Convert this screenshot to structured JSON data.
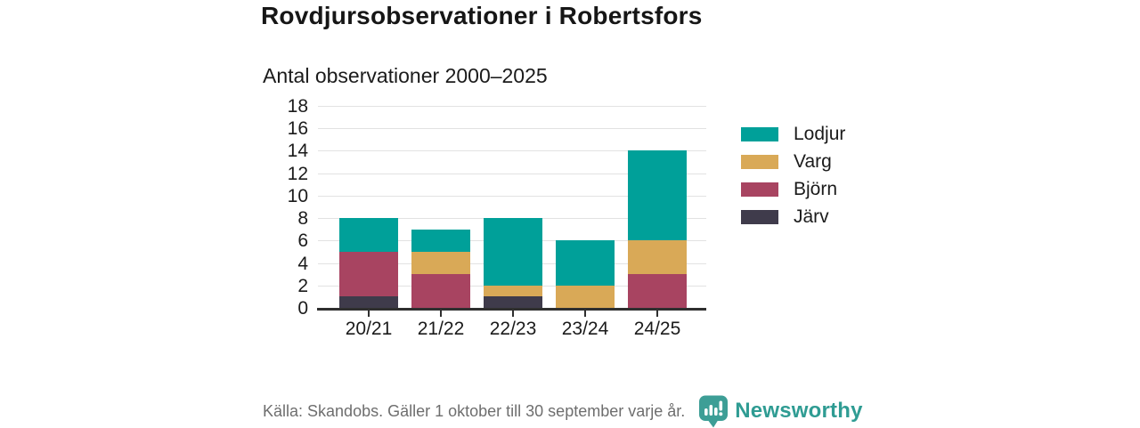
{
  "header": {
    "title": "Rovdjursobservationer i Robertsfors",
    "subtitle": "Antal observationer 2000–2025"
  },
  "chart_data": {
    "type": "bar",
    "stacked": true,
    "title": "Rovdjursobservationer i Robertsfors",
    "subtitle": "Antal observationer 2000–2025",
    "categories": [
      "20/21",
      "21/22",
      "22/23",
      "23/24",
      "24/25"
    ],
    "series": [
      {
        "name": "Järv",
        "color": "#3f3b4b",
        "values": [
          1,
          0,
          1,
          0,
          0
        ]
      },
      {
        "name": "Björn",
        "color": "#a84461",
        "values": [
          4,
          3,
          0,
          0,
          3
        ]
      },
      {
        "name": "Varg",
        "color": "#d9a957",
        "values": [
          0,
          2,
          1,
          2,
          3
        ]
      },
      {
        "name": "Lodjur",
        "color": "#00a099",
        "values": [
          3,
          2,
          6,
          4,
          8
        ]
      }
    ],
    "totals": [
      8,
      7,
      8,
      6,
      14
    ],
    "ylim": [
      0,
      18
    ],
    "yticks": [
      0,
      2,
      4,
      6,
      8,
      10,
      12,
      14,
      16,
      18
    ],
    "xlabel": "",
    "ylabel": "",
    "grid": "horizontal",
    "legend_position": "right",
    "legend_order": [
      "Lodjur",
      "Varg",
      "Björn",
      "Järv"
    ]
  },
  "footer": {
    "source": "Källa: Skandobs. Gäller 1 oktober till 30 september varje år.",
    "brand": "Newsworthy",
    "brand_color": "#2f9c93"
  }
}
